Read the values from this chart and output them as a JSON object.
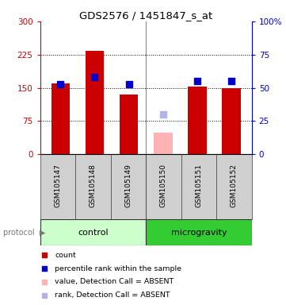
{
  "title": "GDS2576 / 1451847_s_at",
  "samples": [
    "GSM105147",
    "GSM105148",
    "GSM105149",
    "GSM105150",
    "GSM105151",
    "GSM105152"
  ],
  "bar_values": [
    160,
    233,
    135,
    null,
    152,
    150
  ],
  "bar_absent_values": [
    null,
    null,
    null,
    48,
    null,
    null
  ],
  "dot_values": [
    53,
    58,
    53,
    null,
    55,
    55
  ],
  "dot_absent_values": [
    null,
    null,
    null,
    30,
    null,
    null
  ],
  "bar_color": "#cc0000",
  "bar_absent_color": "#ffb3b3",
  "dot_color": "#0000cc",
  "dot_absent_color": "#b3b3e6",
  "ylim_left": [
    0,
    300
  ],
  "ylim_right": [
    0,
    100
  ],
  "yticks_left": [
    0,
    75,
    150,
    225,
    300
  ],
  "yticks_right": [
    0,
    25,
    50,
    75,
    100
  ],
  "ytick_labels_left": [
    "0",
    "75",
    "150",
    "225",
    "300"
  ],
  "ytick_labels_right": [
    "0",
    "25",
    "50",
    "75",
    "100%"
  ],
  "hlines": [
    75,
    150,
    225
  ],
  "control_color_light": "#ccffcc",
  "control_color_dark": "#44dd44",
  "microgravity_color": "#33cc33",
  "sample_box_color": "#d0d0d0",
  "bar_width": 0.55,
  "group_separator_x": 2.5,
  "legend_items": [
    {
      "color": "#cc0000",
      "label": "count"
    },
    {
      "color": "#0000cc",
      "label": "percentile rank within the sample"
    },
    {
      "color": "#ffb3b3",
      "label": "value, Detection Call = ABSENT"
    },
    {
      "color": "#b3b3e6",
      "label": "rank, Detection Call = ABSENT"
    }
  ],
  "xlim": [
    -0.6,
    5.6
  ],
  "figure_width": 3.61,
  "figure_height": 3.84,
  "dpi": 100
}
